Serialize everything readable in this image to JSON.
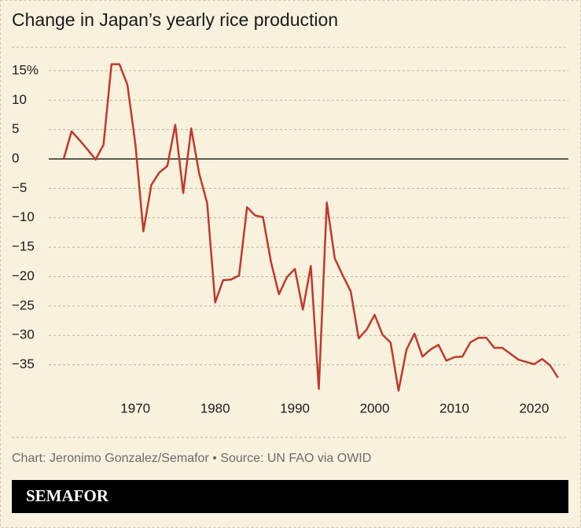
{
  "chart_data": {
    "type": "line",
    "title": "Change in Japan’s yearly rice production",
    "source": "Chart: Jeronimo Gonzalez/Semafor • Source: UN FAO via OWID",
    "logo": "SEMAFOR",
    "color": "#c0392b",
    "x": [
      1961,
      1962,
      1963,
      1964,
      1965,
      1966,
      1967,
      1968,
      1969,
      1970,
      1971,
      1972,
      1973,
      1974,
      1975,
      1976,
      1977,
      1978,
      1979,
      1980,
      1981,
      1982,
      1983,
      1984,
      1985,
      1986,
      1987,
      1988,
      1989,
      1990,
      1991,
      1992,
      1993,
      1994,
      1995,
      1996,
      1997,
      1998,
      1999,
      2000,
      2001,
      2002,
      2003,
      2004,
      2005,
      2006,
      2007,
      2008,
      2009,
      2010,
      2011,
      2012,
      2013,
      2014,
      2015,
      2016,
      2017,
      2018,
      2019,
      2020,
      2021,
      2022,
      2023
    ],
    "values": [
      0,
      4.7,
      3.2,
      1.6,
      -0.1,
      2.4,
      16.1,
      16.1,
      12.6,
      2.5,
      -12.3,
      -4.4,
      -2.3,
      -1.2,
      5.8,
      -5.8,
      5.2,
      -2.5,
      -7.5,
      -24.4,
      -20.6,
      -20.5,
      -19.8,
      -8.2,
      -9.6,
      -9.9,
      -17.5,
      -23,
      -20.1,
      -18.7,
      -25.6,
      -18.2,
      -39.1,
      -7.4,
      -16.9,
      -19.8,
      -22.5,
      -30.5,
      -29,
      -26.5,
      -29.9,
      -31.2,
      -39.4,
      -32.4,
      -29.7,
      -33.6,
      -32.4,
      -31.6,
      -34.3,
      -33.7,
      -33.6,
      -31.2,
      -30.4,
      -30.4,
      -32.1,
      -32.1,
      -33.1,
      -34.1,
      -34.5,
      -34.9,
      -34,
      -35.1,
      -37.2
    ],
    "xlim": [
      1954.5,
      2024.3
    ],
    "xticks": [
      1970,
      1980,
      1990,
      2000,
      2010,
      2020
    ],
    "ylim": [
      -40,
      19
    ],
    "yticks": [
      {
        "value": 15,
        "label": "15%"
      },
      10,
      5,
      0,
      {
        "value": -5,
        "label": "−5"
      },
      {
        "value": -10,
        "label": "−10"
      },
      {
        "value": -15,
        "label": "−15"
      },
      {
        "value": -20,
        "label": "−20"
      },
      {
        "value": -25,
        "label": "−25"
      },
      {
        "value": -30,
        "label": "−30"
      },
      {
        "value": -35,
        "label": "−35"
      }
    ],
    "grid": true
  }
}
